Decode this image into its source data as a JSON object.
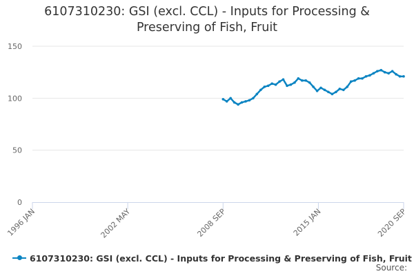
{
  "chart_data": {
    "type": "line",
    "title_lines": [
      "6107310230: GSI (excl. CCL) - Inputs for Processing &",
      "Preserving of Fish, Fruit"
    ],
    "xlabel": "",
    "ylabel": "",
    "x_range": [
      "1996-01",
      "2020-09"
    ],
    "x_tick_labels": [
      "1996 JAN",
      "2002 MAY",
      "2008 SEP",
      "2015 JAN",
      "2020 SEP"
    ],
    "ylim": [
      0,
      150
    ],
    "y_ticks": [
      0,
      50,
      100,
      150
    ],
    "grid": true,
    "legend_position": "bottom-left",
    "credit": "Source:",
    "colors": {
      "series": "#0b84c2",
      "grid": "#e6e6e6",
      "axis": "#ccd6eb",
      "text": "#666666"
    },
    "series": [
      {
        "name": "6107310230: GSI (excl. CCL) - Inputs for Processing & Preserving of Fish, Fruit",
        "x": [
          "2008-09",
          "2008-12",
          "2009-03",
          "2009-06",
          "2009-09",
          "2009-12",
          "2010-03",
          "2010-06",
          "2010-09",
          "2010-12",
          "2011-03",
          "2011-06",
          "2011-09",
          "2011-12",
          "2012-03",
          "2012-06",
          "2012-09",
          "2012-12",
          "2013-03",
          "2013-06",
          "2013-09",
          "2013-12",
          "2014-03",
          "2014-06",
          "2014-09",
          "2014-12",
          "2015-03",
          "2015-06",
          "2015-09",
          "2015-12",
          "2016-03",
          "2016-06",
          "2016-09",
          "2016-12",
          "2017-03",
          "2017-06",
          "2017-09",
          "2017-12",
          "2018-03",
          "2018-06",
          "2018-09",
          "2018-12",
          "2019-03",
          "2019-06",
          "2019-09",
          "2019-12",
          "2020-03",
          "2020-06",
          "2020-09"
        ],
        "values": [
          99,
          97,
          100,
          96,
          94,
          96,
          97,
          98,
          100,
          104,
          108,
          111,
          112,
          114,
          113,
          116,
          118,
          112,
          113,
          115,
          119,
          117,
          117,
          115,
          111,
          107,
          110,
          108,
          106,
          104,
          106,
          109,
          108,
          111,
          116,
          117,
          119,
          119,
          121,
          122,
          124,
          126,
          127,
          125,
          124,
          126,
          123,
          121,
          121
        ]
      }
    ]
  }
}
